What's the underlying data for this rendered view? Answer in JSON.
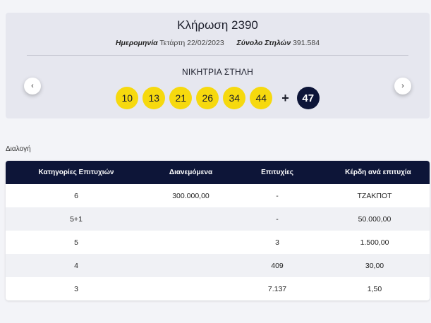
{
  "draw": {
    "title": "Κλήρωση 2390",
    "date_label": "Ημερομηνία",
    "date_value": "Τετάρτη 22/02/2023",
    "columns_label": "Σύνολο Στηλών",
    "columns_value": "391.584",
    "winning_title": "ΝΙΚΗΤΡΙΑ ΣΤΗΛΗ",
    "numbers": [
      "10",
      "13",
      "21",
      "26",
      "34",
      "44"
    ],
    "plus": "+",
    "joker": "47",
    "prev_icon": "‹",
    "next_icon": "›"
  },
  "section_label": "Διαλογή",
  "table": {
    "headers": [
      "Κατηγορίες Επιτυχιών",
      "Διανεμόμενα",
      "Επιτυχίες",
      "Κέρδη ανά επιτυχία"
    ],
    "rows": [
      [
        "6",
        "300.000,00",
        "-",
        "ΤΖΑΚΠΟΤ"
      ],
      [
        "5+1",
        "",
        "-",
        "50.000,00"
      ],
      [
        "5",
        "",
        "3",
        "1.500,00"
      ],
      [
        "4",
        "",
        "409",
        "30,00"
      ],
      [
        "3",
        "",
        "7.137",
        "1,50"
      ]
    ]
  },
  "colors": {
    "ball": "#f6d90e",
    "joker": "#0d1538",
    "header": "#0d1538"
  }
}
